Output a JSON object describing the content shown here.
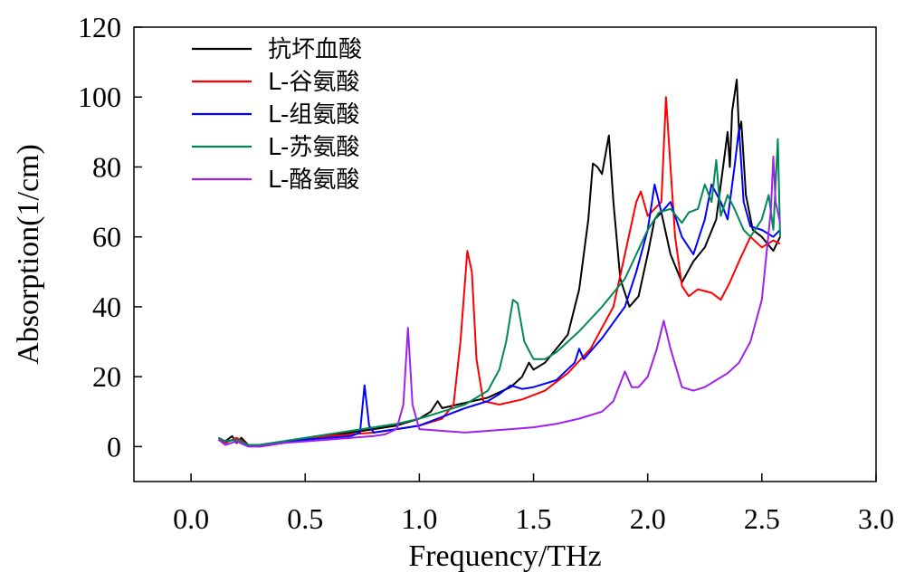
{
  "chart_data": {
    "type": "line",
    "xlabel": "Frequency/THz",
    "ylabel": "Absorption(1/cm)",
    "xlim": [
      -0.25,
      3.0
    ],
    "ylim": [
      -10,
      120
    ],
    "x_ticks": [
      "0.0",
      "0.5",
      "1.0",
      "1.5",
      "2.0",
      "2.5",
      "3.0"
    ],
    "y_ticks": [
      "0",
      "20",
      "40",
      "60",
      "80",
      "100",
      "120"
    ],
    "legend_position": "top-left",
    "series": [
      {
        "name": "抗坏血酸",
        "color": "#000000",
        "points": [
          [
            0.12,
            2.5
          ],
          [
            0.15,
            1.5
          ],
          [
            0.18,
            3
          ],
          [
            0.2,
            1
          ],
          [
            0.22,
            2.5
          ],
          [
            0.25,
            0.5
          ],
          [
            0.3,
            0.5
          ],
          [
            0.4,
            1.2
          ],
          [
            0.5,
            2
          ],
          [
            0.6,
            3
          ],
          [
            0.7,
            4
          ],
          [
            0.8,
            5
          ],
          [
            0.9,
            6
          ],
          [
            1.0,
            8
          ],
          [
            1.05,
            10
          ],
          [
            1.08,
            13
          ],
          [
            1.1,
            11
          ],
          [
            1.2,
            12.5
          ],
          [
            1.3,
            14
          ],
          [
            1.4,
            17
          ],
          [
            1.45,
            20
          ],
          [
            1.48,
            24
          ],
          [
            1.5,
            22
          ],
          [
            1.55,
            24
          ],
          [
            1.6,
            28
          ],
          [
            1.65,
            32
          ],
          [
            1.7,
            45
          ],
          [
            1.74,
            65
          ],
          [
            1.76,
            81
          ],
          [
            1.78,
            80
          ],
          [
            1.8,
            78
          ],
          [
            1.83,
            89
          ],
          [
            1.85,
            70
          ],
          [
            1.88,
            48
          ],
          [
            1.92,
            40
          ],
          [
            1.96,
            43
          ],
          [
            2.0,
            55
          ],
          [
            2.03,
            65
          ],
          [
            2.06,
            67
          ],
          [
            2.1,
            55
          ],
          [
            2.15,
            47
          ],
          [
            2.2,
            53
          ],
          [
            2.25,
            57
          ],
          [
            2.3,
            65
          ],
          [
            2.33,
            80
          ],
          [
            2.35,
            90
          ],
          [
            2.36,
            80
          ],
          [
            2.37,
            96
          ],
          [
            2.39,
            105
          ],
          [
            2.4,
            90
          ],
          [
            2.41,
            93
          ],
          [
            2.43,
            72
          ],
          [
            2.46,
            62
          ],
          [
            2.5,
            60
          ],
          [
            2.55,
            56
          ],
          [
            2.58,
            60
          ]
        ]
      },
      {
        "name": "L-谷氨酸",
        "color": "#ff0000",
        "points": [
          [
            0.12,
            2
          ],
          [
            0.15,
            1
          ],
          [
            0.2,
            2.5
          ],
          [
            0.25,
            0.5
          ],
          [
            0.3,
            0
          ],
          [
            0.4,
            1
          ],
          [
            0.5,
            2
          ],
          [
            0.6,
            3
          ],
          [
            0.7,
            3.5
          ],
          [
            0.8,
            4
          ],
          [
            0.9,
            5
          ],
          [
            1.0,
            6
          ],
          [
            1.05,
            7
          ],
          [
            1.1,
            8
          ],
          [
            1.15,
            12
          ],
          [
            1.18,
            30
          ],
          [
            1.21,
            56
          ],
          [
            1.23,
            50
          ],
          [
            1.25,
            25
          ],
          [
            1.28,
            13
          ],
          [
            1.35,
            12
          ],
          [
            1.45,
            13.5
          ],
          [
            1.55,
            16
          ],
          [
            1.65,
            21
          ],
          [
            1.75,
            28
          ],
          [
            1.85,
            40
          ],
          [
            1.9,
            55
          ],
          [
            1.95,
            70
          ],
          [
            1.97,
            73
          ],
          [
            2.0,
            66
          ],
          [
            2.03,
            68
          ],
          [
            2.06,
            70
          ],
          [
            2.08,
            100
          ],
          [
            2.1,
            80
          ],
          [
            2.12,
            60
          ],
          [
            2.15,
            46
          ],
          [
            2.18,
            43
          ],
          [
            2.22,
            45
          ],
          [
            2.28,
            44
          ],
          [
            2.32,
            42
          ],
          [
            2.36,
            47
          ],
          [
            2.4,
            53
          ],
          [
            2.45,
            60
          ],
          [
            2.5,
            57
          ],
          [
            2.55,
            59
          ],
          [
            2.58,
            58
          ]
        ]
      },
      {
        "name": "L-组氨酸",
        "color": "#0000ff",
        "points": [
          [
            0.12,
            2.5
          ],
          [
            0.15,
            1.5
          ],
          [
            0.2,
            2
          ],
          [
            0.25,
            0.5
          ],
          [
            0.3,
            0
          ],
          [
            0.4,
            1
          ],
          [
            0.5,
            2
          ],
          [
            0.6,
            2.5
          ],
          [
            0.7,
            3
          ],
          [
            0.74,
            4
          ],
          [
            0.76,
            17.5
          ],
          [
            0.78,
            6
          ],
          [
            0.8,
            4
          ],
          [
            0.9,
            5
          ],
          [
            1.0,
            6
          ],
          [
            1.1,
            8.5
          ],
          [
            1.2,
            11
          ],
          [
            1.25,
            12
          ],
          [
            1.3,
            13
          ],
          [
            1.35,
            15
          ],
          [
            1.4,
            17.5
          ],
          [
            1.45,
            16.5
          ],
          [
            1.5,
            17
          ],
          [
            1.6,
            19
          ],
          [
            1.68,
            24
          ],
          [
            1.7,
            28
          ],
          [
            1.72,
            25
          ],
          [
            1.8,
            31
          ],
          [
            1.9,
            40
          ],
          [
            1.95,
            50
          ],
          [
            2.0,
            62
          ],
          [
            2.03,
            75
          ],
          [
            2.06,
            67
          ],
          [
            2.1,
            70
          ],
          [
            2.15,
            60
          ],
          [
            2.2,
            55
          ],
          [
            2.25,
            65
          ],
          [
            2.28,
            75
          ],
          [
            2.32,
            70
          ],
          [
            2.35,
            65
          ],
          [
            2.38,
            80
          ],
          [
            2.4,
            91
          ],
          [
            2.42,
            70
          ],
          [
            2.45,
            63
          ],
          [
            2.5,
            62
          ],
          [
            2.55,
            60
          ],
          [
            2.58,
            62
          ]
        ]
      },
      {
        "name": "L-苏氨酸",
        "color": "#008855",
        "points": [
          [
            0.12,
            2.5
          ],
          [
            0.15,
            1.5
          ],
          [
            0.2,
            2
          ],
          [
            0.25,
            0.5
          ],
          [
            0.3,
            0.5
          ],
          [
            0.4,
            1.5
          ],
          [
            0.5,
            2.5
          ],
          [
            0.6,
            3.5
          ],
          [
            0.7,
            4.5
          ],
          [
            0.8,
            5.5
          ],
          [
            0.9,
            6.5
          ],
          [
            1.0,
            8
          ],
          [
            1.1,
            10
          ],
          [
            1.2,
            12
          ],
          [
            1.3,
            16
          ],
          [
            1.35,
            22
          ],
          [
            1.38,
            30
          ],
          [
            1.41,
            42
          ],
          [
            1.43,
            41
          ],
          [
            1.46,
            30
          ],
          [
            1.5,
            25
          ],
          [
            1.55,
            25
          ],
          [
            1.6,
            27
          ],
          [
            1.7,
            33
          ],
          [
            1.8,
            40
          ],
          [
            1.9,
            48
          ],
          [
            2.0,
            62
          ],
          [
            2.05,
            67
          ],
          [
            2.1,
            68
          ],
          [
            2.15,
            64
          ],
          [
            2.18,
            67
          ],
          [
            2.22,
            68
          ],
          [
            2.25,
            75
          ],
          [
            2.28,
            70
          ],
          [
            2.3,
            82
          ],
          [
            2.32,
            66
          ],
          [
            2.35,
            72
          ],
          [
            2.38,
            68
          ],
          [
            2.42,
            62
          ],
          [
            2.45,
            60
          ],
          [
            2.5,
            65
          ],
          [
            2.53,
            72
          ],
          [
            2.55,
            62
          ],
          [
            2.57,
            88
          ],
          [
            2.58,
            60
          ]
        ]
      },
      {
        "name": "L-酪氨酸",
        "color": "#a020f0",
        "points": [
          [
            0.12,
            2
          ],
          [
            0.15,
            0.5
          ],
          [
            0.2,
            1.5
          ],
          [
            0.25,
            0
          ],
          [
            0.3,
            0
          ],
          [
            0.4,
            1
          ],
          [
            0.5,
            1.5
          ],
          [
            0.6,
            2
          ],
          [
            0.7,
            2.5
          ],
          [
            0.8,
            3
          ],
          [
            0.85,
            3.5
          ],
          [
            0.9,
            5
          ],
          [
            0.93,
            12
          ],
          [
            0.95,
            34
          ],
          [
            0.97,
            12
          ],
          [
            1.0,
            5
          ],
          [
            1.1,
            4.5
          ],
          [
            1.2,
            4
          ],
          [
            1.3,
            4.5
          ],
          [
            1.4,
            5
          ],
          [
            1.5,
            5.5
          ],
          [
            1.6,
            6.5
          ],
          [
            1.7,
            8
          ],
          [
            1.8,
            10
          ],
          [
            1.85,
            13
          ],
          [
            1.9,
            21.5
          ],
          [
            1.93,
            17
          ],
          [
            1.96,
            17
          ],
          [
            2.0,
            20
          ],
          [
            2.04,
            28
          ],
          [
            2.07,
            36
          ],
          [
            2.1,
            28
          ],
          [
            2.15,
            17
          ],
          [
            2.2,
            16
          ],
          [
            2.25,
            17
          ],
          [
            2.3,
            19
          ],
          [
            2.35,
            21
          ],
          [
            2.4,
            24
          ],
          [
            2.45,
            30
          ],
          [
            2.5,
            42
          ],
          [
            2.52,
            55
          ],
          [
            2.54,
            68
          ],
          [
            2.55,
            83
          ],
          [
            2.56,
            70
          ],
          [
            2.58,
            64
          ]
        ]
      }
    ]
  }
}
